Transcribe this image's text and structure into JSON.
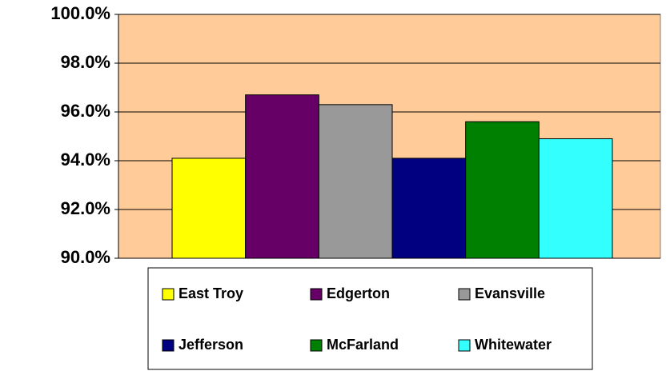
{
  "chart_data": {
    "type": "bar",
    "categories": [
      null
    ],
    "series": [
      {
        "name": "East Troy",
        "color": "#ffff00",
        "values": [
          94.1
        ]
      },
      {
        "name": "Edgerton",
        "color": "#660066",
        "values": [
          96.7
        ]
      },
      {
        "name": "Evansville",
        "color": "#999999",
        "values": [
          96.3
        ]
      },
      {
        "name": "Jefferson",
        "color": "#000080",
        "values": [
          94.1
        ]
      },
      {
        "name": "McFarland",
        "color": "#008000",
        "values": [
          95.6
        ]
      },
      {
        "name": "Whitewater",
        "color": "#33ffff",
        "values": [
          94.9
        ]
      }
    ],
    "ylim": [
      90,
      100
    ],
    "yticks": [
      {
        "value": 90,
        "label": "90.0%"
      },
      {
        "value": 92,
        "label": "92.0%"
      },
      {
        "value": 94,
        "label": "94.0%"
      },
      {
        "value": 96,
        "label": "96.0%"
      },
      {
        "value": 98,
        "label": "98.0%"
      },
      {
        "value": 100,
        "label": "100.0%"
      }
    ],
    "grid": true,
    "legend": "bottom",
    "plot_background": "#ffcc99"
  }
}
